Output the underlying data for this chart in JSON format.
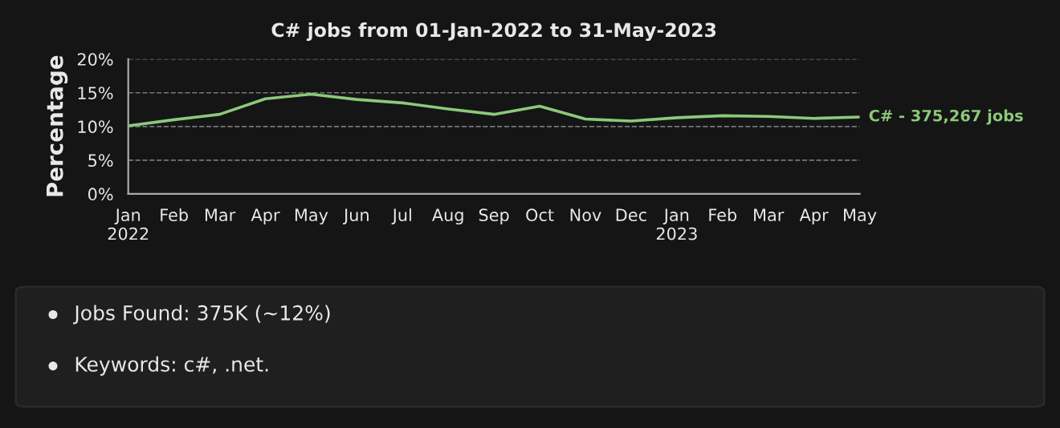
{
  "chart_data": {
    "type": "line",
    "title": "C# jobs from 01-Jan-2022 to 31-May-2023",
    "ylabel": "Percentage",
    "categories": [
      "Jan\n2022",
      "Feb",
      "Mar",
      "Apr",
      "May",
      "Jun",
      "Jul",
      "Aug",
      "Sep",
      "Oct",
      "Nov",
      "Dec",
      "Jan\n2023",
      "Feb",
      "Mar",
      "Apr",
      "May"
    ],
    "series": [
      {
        "name": "C# - 375,267 jobs",
        "color": "#8cc97a",
        "values": [
          10.1,
          11.0,
          11.8,
          14.1,
          14.8,
          14.0,
          13.5,
          12.6,
          11.8,
          13.0,
          11.1,
          10.8,
          11.3,
          11.6,
          11.5,
          11.2,
          11.4
        ]
      }
    ],
    "ylim": [
      0,
      20
    ],
    "yticks": [
      {
        "value": 0,
        "label": "0%"
      },
      {
        "value": 5,
        "label": "5%"
      },
      {
        "value": 10,
        "label": "10%"
      },
      {
        "value": 15,
        "label": "15%"
      },
      {
        "value": 20,
        "label": "20%"
      }
    ],
    "grid": "y",
    "legend": false,
    "marker": "none",
    "line_style": "solid",
    "annotations": [
      "Jobs Found: 375K (~12%)",
      "Keywords: c#, .net."
    ]
  }
}
